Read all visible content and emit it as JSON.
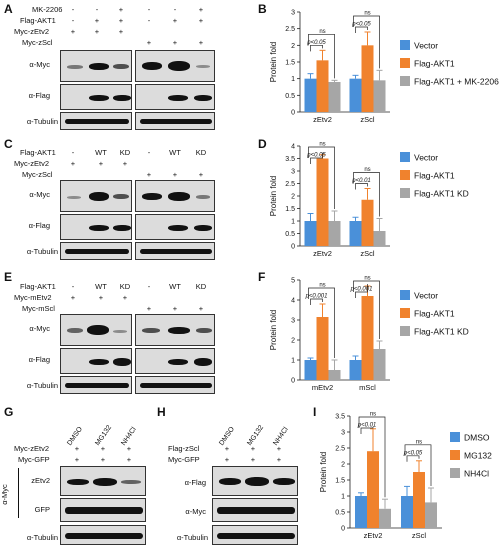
{
  "panels": {
    "A": {
      "label": "A",
      "rows": [
        {
          "name": "MK-2206",
          "marks": [
            "-",
            "-",
            "+",
            "-",
            "-",
            "+"
          ]
        },
        {
          "name": "Flag-AKT1",
          "marks": [
            "-",
            "+",
            "+",
            "-",
            "+",
            "+"
          ]
        },
        {
          "name": "Myc-zEtv2",
          "marks": [
            "+",
            "+",
            "+",
            "",
            "",
            ""
          ]
        },
        {
          "name": "Myc-zScl",
          "marks": [
            "",
            "",
            "",
            "+",
            "+",
            "+"
          ]
        }
      ],
      "blots": [
        "α-Myc",
        "α-Flag",
        "α-Tubulin"
      ]
    },
    "C": {
      "label": "C",
      "rows": [
        {
          "name": "Flag-AKT1",
          "marks": [
            "-",
            "WT",
            "KD",
            "-",
            "WT",
            "KD"
          ]
        },
        {
          "name": "Myc-zEtv2",
          "marks": [
            "+",
            "+",
            "+",
            "",
            "",
            ""
          ]
        },
        {
          "name": "Myc-zScl",
          "marks": [
            "",
            "",
            "",
            "+",
            "+",
            "+"
          ]
        }
      ],
      "blots": [
        "α-Myc",
        "α-Flag",
        "α-Tubulin"
      ]
    },
    "E": {
      "label": "E",
      "rows": [
        {
          "name": "Flag-AKT1",
          "marks": [
            "-",
            "WT",
            "KD",
            "-",
            "WT",
            "KD"
          ]
        },
        {
          "name": "Myc-mEtv2",
          "marks": [
            "+",
            "+",
            "+",
            "",
            "",
            ""
          ]
        },
        {
          "name": "Myc-mScl",
          "marks": [
            "",
            "",
            "",
            "+",
            "+",
            "+"
          ]
        }
      ],
      "blots": [
        "α-Myc",
        "α-Flag",
        "α-Tubulin"
      ]
    },
    "G": {
      "label": "G",
      "cols": [
        "DMSO",
        "MG132",
        "NH4Cl"
      ],
      "rows": [
        {
          "name": "Myc-zEtv2",
          "marks": [
            "+",
            "+",
            "+"
          ]
        },
        {
          "name": "Myc-GFP",
          "marks": [
            "+",
            "+",
            "+"
          ]
        }
      ],
      "group_label": "α-Myc",
      "blots": [
        "zEtv2",
        "GFP",
        "α-Tubulin"
      ]
    },
    "H": {
      "label": "H",
      "cols": [
        "DMSO",
        "MG132",
        "NH4Cl"
      ],
      "rows": [
        {
          "name": "Flag-zScl",
          "marks": [
            "+",
            "+",
            "+"
          ]
        },
        {
          "name": "Myc-GFP",
          "marks": [
            "+",
            "+",
            "+"
          ]
        }
      ],
      "blots": [
        "α-Flag",
        "α-Myc",
        "α-Tubulin"
      ]
    }
  },
  "chart_data": [
    {
      "panel": "B",
      "type": "bar",
      "ylabel": "Protein fold",
      "ylim": [
        0,
        3
      ],
      "yticks": [
        "0",
        "0.5",
        "1",
        "1.5",
        "2",
        "2.5",
        "3"
      ],
      "categories": [
        "zEtv2",
        "zScl"
      ],
      "colors": [
        "#4a90d9",
        "#f0822d",
        "#a6a6a6"
      ],
      "series": [
        {
          "name": "Vector",
          "values": [
            1,
            1
          ],
          "errors": [
            0.15,
            0.1
          ]
        },
        {
          "name": "Flag-AKT1",
          "values": [
            1.55,
            2.0
          ],
          "errors": [
            0.3,
            0.4
          ]
        },
        {
          "name": "Flag-AKT1 + MK-2206",
          "values": [
            0.9,
            0.95
          ],
          "errors": [
            0.05,
            0.3
          ]
        }
      ],
      "annotations": [
        {
          "top": "ns",
          "bottom": "p<0.05"
        },
        {
          "top": "ns",
          "bottom": "p<0.05"
        }
      ]
    },
    {
      "panel": "D",
      "type": "bar",
      "ylabel": "Protein fold",
      "ylim": [
        0,
        4
      ],
      "yticks": [
        "0",
        "0.5",
        "1",
        "1.5",
        "2",
        "2.5",
        "3",
        "3.5",
        "4"
      ],
      "categories": [
        "zEtv2",
        "zScl"
      ],
      "colors": [
        "#4a90d9",
        "#f0822d",
        "#a6a6a6"
      ],
      "series": [
        {
          "name": "Vector",
          "values": [
            1,
            1
          ],
          "errors": [
            0.3,
            0.15
          ]
        },
        {
          "name": "Flag-AKT1",
          "values": [
            3.5,
            1.85
          ],
          "errors": [
            0.15,
            0.45
          ]
        },
        {
          "name": "Flag-AKT1 KD",
          "values": [
            1.0,
            0.6
          ],
          "errors": [
            0.4,
            0.5
          ]
        }
      ],
      "annotations": [
        {
          "top": "ns",
          "bottom": "p<0.05"
        },
        {
          "top": "ns",
          "bottom": "p<0.01"
        }
      ]
    },
    {
      "panel": "F",
      "type": "bar",
      "ylabel": "Protein fold",
      "ylim": [
        0,
        5
      ],
      "yticks": [
        "0",
        "1",
        "2",
        "3",
        "4",
        "5"
      ],
      "categories": [
        "mEtv2",
        "mScl"
      ],
      "colors": [
        "#4a90d9",
        "#f0822d",
        "#a6a6a6"
      ],
      "series": [
        {
          "name": "Vector",
          "values": [
            1,
            1
          ],
          "errors": [
            0.1,
            0.2
          ]
        },
        {
          "name": "Flag-AKT1",
          "values": [
            3.15,
            4.2
          ],
          "errors": [
            0.65,
            0.5
          ]
        },
        {
          "name": "Flag-AKT1 KD",
          "values": [
            0.5,
            1.55
          ],
          "errors": [
            0.5,
            0.4
          ]
        }
      ],
      "annotations": [
        {
          "top": "ns",
          "bottom": "p<0.001"
        },
        {
          "top": "ns",
          "bottom": "p<0.001"
        }
      ]
    },
    {
      "panel": "I",
      "type": "bar",
      "ylabel": "Protein fold",
      "ylim": [
        0,
        3.5
      ],
      "yticks": [
        "0",
        "0.5",
        "1",
        "1.5",
        "2",
        "2.5",
        "3",
        "3.5"
      ],
      "categories": [
        "zEtv2",
        "zScl"
      ],
      "colors": [
        "#4a90d9",
        "#f0822d",
        "#a6a6a6"
      ],
      "series": [
        {
          "name": "DMSO",
          "values": [
            1,
            1
          ],
          "errors": [
            0.1,
            0.3
          ]
        },
        {
          "name": "MG132",
          "values": [
            2.4,
            1.75
          ],
          "errors": [
            0.7,
            0.35
          ]
        },
        {
          "name": "NH4Cl",
          "values": [
            0.6,
            0.8
          ],
          "errors": [
            0.3,
            0.45
          ]
        }
      ],
      "annotations": [
        {
          "top": "ns",
          "bottom": "p<0.01"
        },
        {
          "top": "ns",
          "bottom": "p<0.05"
        }
      ]
    }
  ]
}
